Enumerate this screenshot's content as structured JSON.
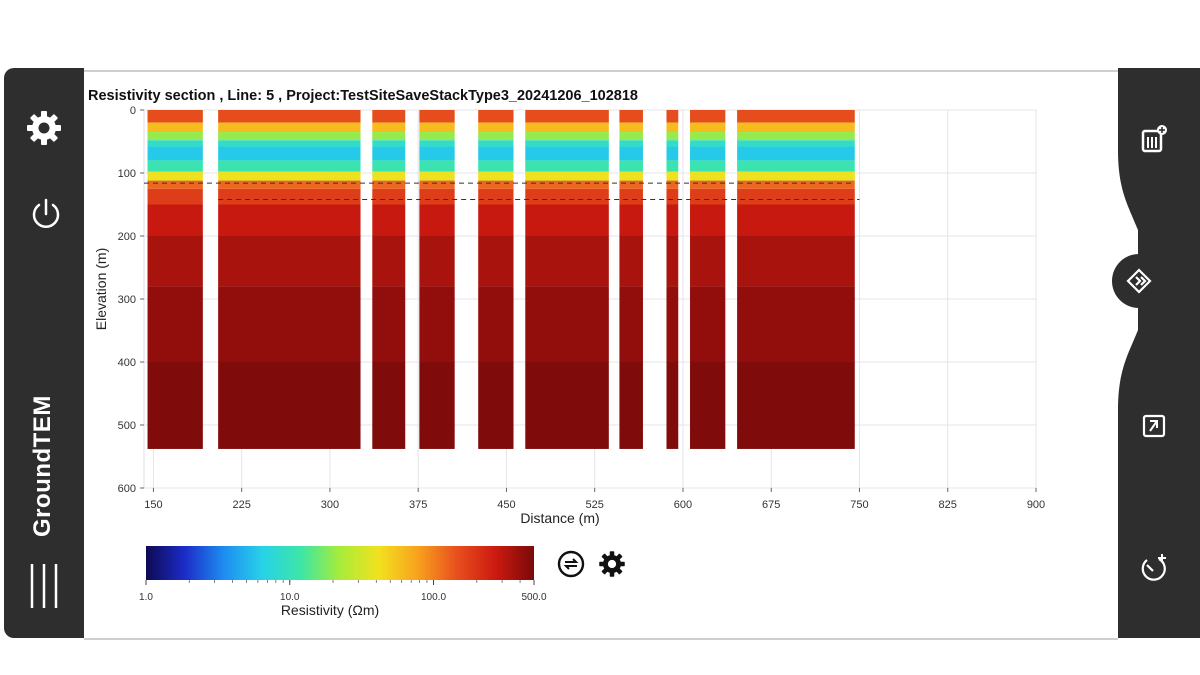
{
  "app": {
    "brand": "GroundTEM"
  },
  "left_rail": {
    "icons": [
      "gear-icon",
      "power-icon",
      "hamburger-menu-icon"
    ]
  },
  "right_rail": {
    "icons": [
      "import-data-icon",
      "diamond-navigation-icon",
      "zoom-fit-icon",
      "timer-add-icon"
    ]
  },
  "colors": {
    "rail": "#2e2e2e",
    "panel": "#ffffff",
    "grid": "#e5e5ec"
  },
  "chart": {
    "title": "Resistivity section , Line: 5 , Project:TestSiteSaveStackType3_20241206_102818"
  },
  "chart_data": {
    "type": "heatmap",
    "title": "Resistivity section , Line: 5 , Project:TestSiteSaveStackType3_20241206_102818",
    "xlabel": "Distance (m)",
    "ylabel": "Elevation (m)",
    "xlim": [
      142,
      900
    ],
    "ylim": [
      0,
      600
    ],
    "y_inverted": true,
    "x_ticks": [
      "150",
      "225",
      "300",
      "375",
      "450",
      "525",
      "600",
      "675",
      "750",
      "825",
      "900"
    ],
    "y_ticks": [
      "0",
      "100",
      "200",
      "300",
      "400",
      "500",
      "600"
    ],
    "grid": true,
    "segments": [
      {
        "x_start": 145,
        "x_end": 192
      },
      {
        "x_start": 205,
        "x_end": 326
      },
      {
        "x_start": 336,
        "x_end": 364
      },
      {
        "x_start": 376,
        "x_end": 406
      },
      {
        "x_start": 426,
        "x_end": 456
      },
      {
        "x_start": 466,
        "x_end": 537
      },
      {
        "x_start": 546,
        "x_end": 566
      },
      {
        "x_start": 586,
        "x_end": 596
      },
      {
        "x_start": 606,
        "x_end": 636
      },
      {
        "x_start": 646,
        "x_end": 746
      }
    ],
    "section_depth": 538,
    "layers": [
      {
        "top": 0,
        "bottom": 20,
        "resistivity": 150
      },
      {
        "top": 20,
        "bottom": 35,
        "resistivity": 60
      },
      {
        "top": 35,
        "bottom": 48,
        "resistivity": 20
      },
      {
        "top": 48,
        "bottom": 58,
        "resistivity": 9
      },
      {
        "top": 58,
        "bottom": 80,
        "resistivity": 6
      },
      {
        "top": 80,
        "bottom": 98,
        "resistivity": 11
      },
      {
        "top": 98,
        "bottom": 112,
        "resistivity": 40
      },
      {
        "top": 112,
        "bottom": 125,
        "resistivity": 120
      },
      {
        "top": 125,
        "bottom": 150,
        "resistivity": 180
      },
      {
        "top": 150,
        "bottom": 200,
        "resistivity": 280
      },
      {
        "top": 200,
        "bottom": 280,
        "resistivity": 350
      },
      {
        "top": 280,
        "bottom": 400,
        "resistivity": 420
      },
      {
        "top": 400,
        "bottom": 538,
        "resistivity": 480
      }
    ],
    "doi_lines": [
      {
        "elevation": 116,
        "x_start": 142,
        "x_end": 746
      },
      {
        "elevation": 142,
        "x_start": 205,
        "x_end": 750
      }
    ],
    "colorbar": {
      "label": "Resistivity (Ωm)",
      "min": 1.0,
      "max": 500.0,
      "scale": "log",
      "tick_labels": [
        "1.0",
        "10.0",
        "100.0",
        "500.0"
      ],
      "tick_values": [
        1,
        10,
        100,
        500
      ],
      "colors": [
        "#0d0a52",
        "#1c2cc8",
        "#1e8cf0",
        "#27d2e8",
        "#3de6a6",
        "#a8ec3a",
        "#f2e11e",
        "#f8a21e",
        "#e8501e",
        "#cc1a10",
        "#7a0a0a"
      ]
    }
  },
  "colorbar_controls": {
    "icons": [
      "swap-colors-icon",
      "settings-icon"
    ]
  }
}
